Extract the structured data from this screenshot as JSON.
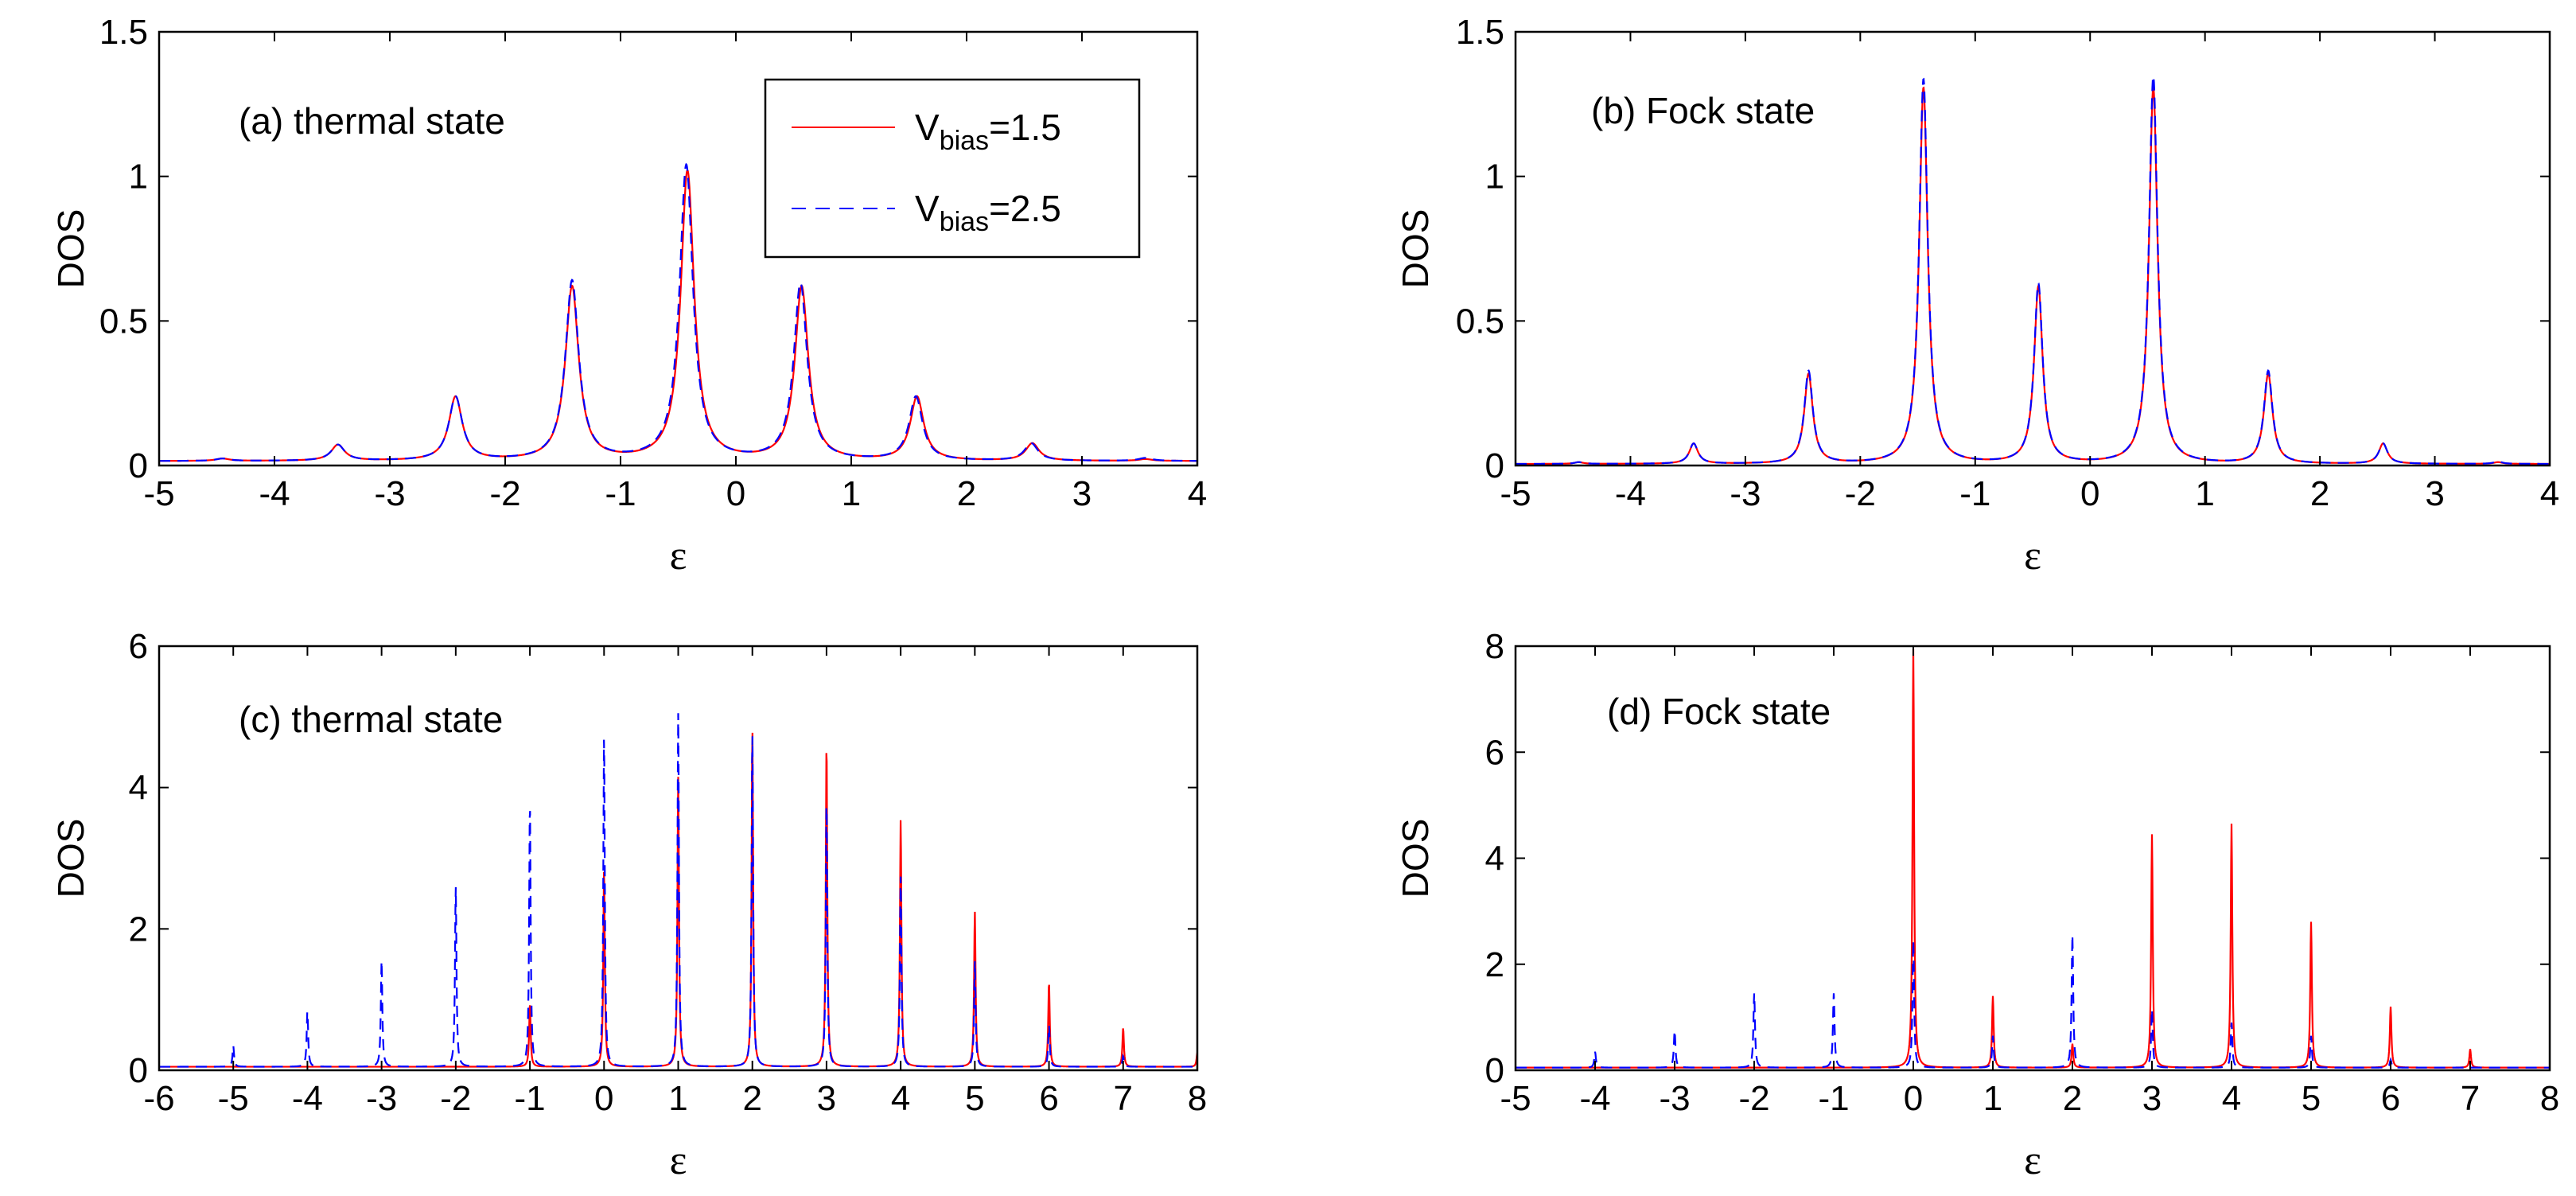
{
  "legend": {
    "entries": [
      {
        "name": "V",
        "sub": "bias",
        "suffix": "=1.5",
        "color": "#ff0000",
        "dash": "solid"
      },
      {
        "name": "V",
        "sub": "bias",
        "suffix": "=2.5",
        "color": "#0000ff",
        "dash": "dashed"
      }
    ]
  },
  "chart_data": [
    {
      "panel": "a",
      "type": "line",
      "title": "(a) thermal state",
      "xlabel": "ε",
      "ylabel": "DOS",
      "xlim": [
        -5,
        4
      ],
      "ylim": [
        0,
        1.5
      ],
      "xticks": [
        "-5",
        "-4",
        "-3",
        "-2",
        "-1",
        "0",
        "1",
        "2",
        "3",
        "4"
      ],
      "yticks": [
        "0",
        "0.5",
        "1",
        "1.5"
      ],
      "has_legend": true,
      "baseline": 0.015,
      "gamma": 0.07,
      "series": [
        {
          "name": "Vbias=1.5",
          "color": "#ff0000",
          "dash": "solid",
          "peaks": [
            [
              -4.45,
              0.008
            ],
            [
              -3.45,
              0.055
            ],
            [
              -2.43,
              0.22
            ],
            [
              -1.42,
              0.6
            ],
            [
              -0.42,
              1.0
            ],
            [
              0.57,
              0.6
            ],
            [
              1.57,
              0.22
            ],
            [
              2.57,
              0.06
            ],
            [
              3.55,
              0.006
            ]
          ]
        },
        {
          "name": "Vbias=2.5",
          "color": "#0000ff",
          "dash": "dashed",
          "peaks": [
            [
              -4.45,
              0.008
            ],
            [
              -3.45,
              0.055
            ],
            [
              -2.43,
              0.22
            ],
            [
              -1.42,
              0.62
            ],
            [
              -0.43,
              1.02
            ],
            [
              0.56,
              0.61
            ],
            [
              1.56,
              0.22
            ],
            [
              2.56,
              0.06
            ],
            [
              3.55,
              0.01
            ]
          ]
        }
      ]
    },
    {
      "panel": "b",
      "type": "line",
      "title": "(b) Fock state",
      "xlabel": "ε",
      "ylabel": "DOS",
      "xlim": [
        -5,
        4
      ],
      "ylim": [
        0,
        1.5
      ],
      "xticks": [
        "-5",
        "-4",
        "-3",
        "-2",
        "-1",
        "0",
        "1",
        "2",
        "3",
        "4"
      ],
      "yticks": [
        "0",
        "0.5",
        "1",
        "1.5"
      ],
      "has_legend": false,
      "baseline": 0.005,
      "gamma": 0.045,
      "series": [
        {
          "name": "Vbias=1.5",
          "color": "#ff0000",
          "dash": "solid",
          "peaks": [
            [
              -4.45,
              0.006
            ],
            [
              -3.45,
              0.07
            ],
            [
              -2.45,
              0.31
            ],
            [
              -1.45,
              1.3
            ],
            [
              -0.45,
              0.61
            ],
            [
              0.55,
              1.3
            ],
            [
              1.55,
              0.31
            ],
            [
              2.55,
              0.07
            ],
            [
              3.55,
              0.006
            ]
          ]
        },
        {
          "name": "Vbias=2.5",
          "color": "#0000ff",
          "dash": "dashed",
          "peaks": [
            [
              -4.45,
              0.006
            ],
            [
              -3.45,
              0.07
            ],
            [
              -2.45,
              0.32
            ],
            [
              -1.45,
              1.33
            ],
            [
              -0.45,
              0.62
            ],
            [
              0.55,
              1.34
            ],
            [
              1.55,
              0.32
            ],
            [
              2.55,
              0.07
            ],
            [
              3.55,
              0.008
            ]
          ]
        }
      ]
    },
    {
      "panel": "c",
      "type": "line",
      "title": "(c) thermal state",
      "xlabel": "ε",
      "ylabel": "DOS",
      "xlim": [
        -6,
        8
      ],
      "ylim": [
        0,
        6
      ],
      "xticks": [
        "-6",
        "-5",
        "-4",
        "-3",
        "-2",
        "-1",
        "0",
        "1",
        "2",
        "3",
        "4",
        "5",
        "6",
        "7",
        "8"
      ],
      "yticks": [
        "0",
        "2",
        "4",
        "6"
      ],
      "has_legend": false,
      "baseline": 0.05,
      "gamma": 0.012,
      "series": [
        {
          "name": "Vbias=1.5",
          "color": "#ff0000",
          "dash": "solid",
          "peaks": [
            [
              -1,
              0.9
            ],
            [
              0,
              2.8
            ],
            [
              1,
              4.1
            ],
            [
              2,
              4.8
            ],
            [
              3,
              4.6
            ],
            [
              4,
              3.5
            ],
            [
              5,
              2.2
            ],
            [
              6,
              1.2
            ],
            [
              7,
              0.55
            ],
            [
              8,
              0.2
            ]
          ]
        },
        {
          "name": "Vbias=2.5",
          "color": "#0000ff",
          "dash": "dashed",
          "peaks": [
            [
              -5,
              0.3
            ],
            [
              -4,
              0.8
            ],
            [
              -3,
              1.5
            ],
            [
              -2,
              2.55
            ],
            [
              -1,
              3.75
            ],
            [
              0,
              4.7
            ],
            [
              1,
              5.0
            ],
            [
              2,
              4.75
            ],
            [
              3,
              3.8
            ],
            [
              4,
              2.7
            ],
            [
              5,
              1.5
            ],
            [
              6,
              0.6
            ],
            [
              7,
              0.15
            ]
          ]
        }
      ]
    },
    {
      "panel": "d",
      "type": "line",
      "title": "(d) Fock state",
      "xlabel": "ε",
      "ylabel": "DOS",
      "xlim": [
        -5,
        8
      ],
      "ylim": [
        0,
        8
      ],
      "xticks": [
        "-5",
        "-4",
        "-3",
        "-2",
        "-1",
        "0",
        "1",
        "2",
        "3",
        "4",
        "5",
        "6",
        "7",
        "8"
      ],
      "yticks": [
        "0",
        "2",
        "4",
        "6",
        "8"
      ],
      "has_legend": false,
      "baseline": 0.05,
      "gamma": 0.012,
      "series": [
        {
          "name": "Vbias=1.5",
          "color": "#ff0000",
          "dash": "solid",
          "peaks": [
            [
              0,
              7.9
            ],
            [
              1,
              1.35
            ],
            [
              2,
              0.45
            ],
            [
              3,
              4.4
            ],
            [
              4,
              4.6
            ],
            [
              5,
              2.75
            ],
            [
              6,
              1.15
            ],
            [
              7,
              0.35
            ]
          ]
        },
        {
          "name": "Vbias=2.5",
          "color": "#0000ff",
          "dash": "dashed",
          "peaks": [
            [
              -4,
              0.3
            ],
            [
              -3,
              0.7
            ],
            [
              -2,
              1.4
            ],
            [
              -1,
              1.4
            ],
            [
              0,
              2.4
            ],
            [
              1,
              0.6
            ],
            [
              2,
              2.5
            ],
            [
              3,
              1.1
            ],
            [
              4,
              0.85
            ],
            [
              5,
              0.6
            ],
            [
              6,
              0.15
            ]
          ]
        }
      ]
    }
  ]
}
